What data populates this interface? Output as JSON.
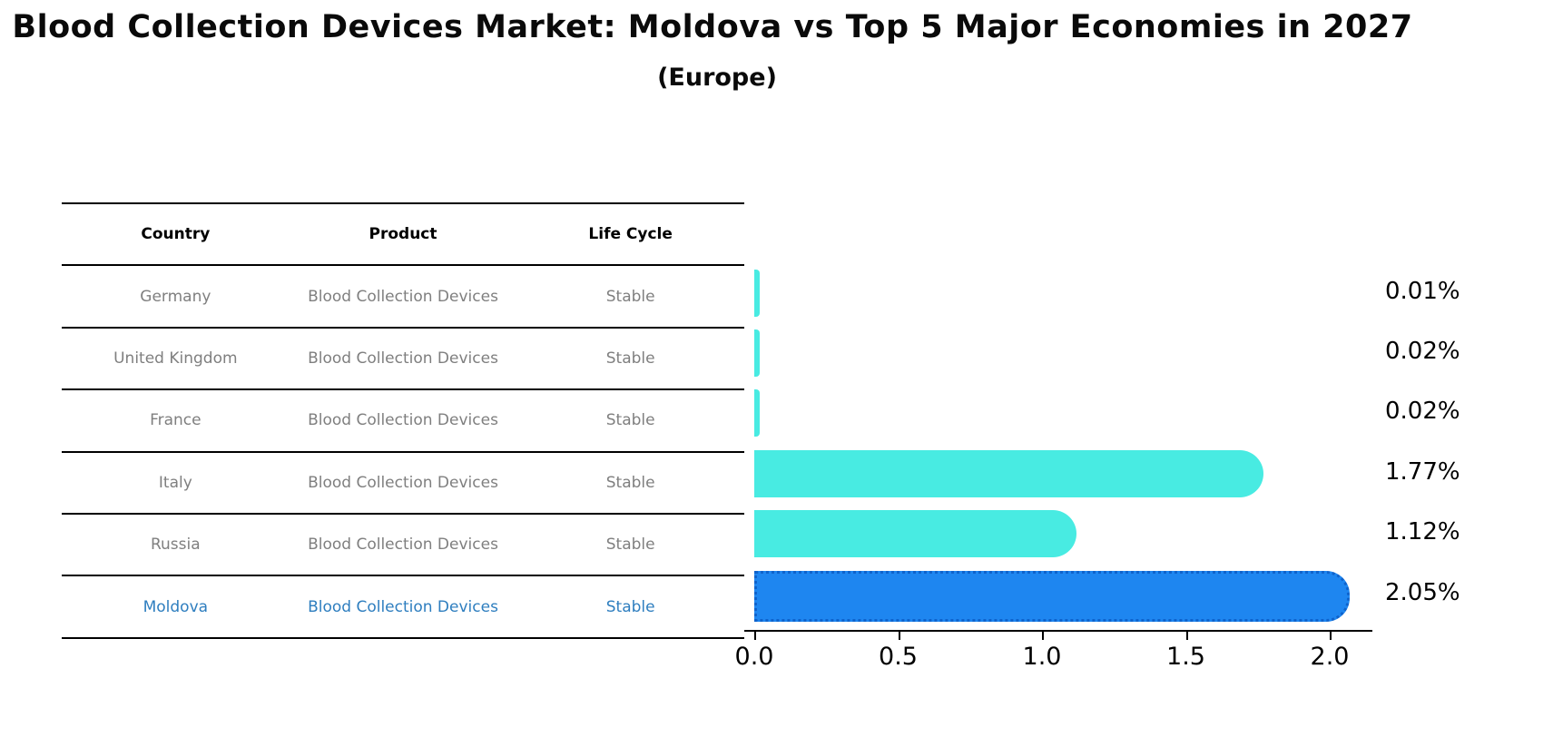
{
  "title": "Blood Collection Devices Market: Moldova vs Top 5 Major Economies in 2027",
  "subtitle": "(Europe)",
  "table": {
    "headers": [
      "Country",
      "Product",
      "Life Cycle"
    ],
    "rows": [
      {
        "country": "Germany",
        "product": "Blood Collection Devices",
        "life_cycle": "Stable",
        "highlighted": false
      },
      {
        "country": "United Kingdom",
        "product": "Blood Collection Devices",
        "life_cycle": "Stable",
        "highlighted": false
      },
      {
        "country": "France",
        "product": "Blood Collection Devices",
        "life_cycle": "Stable",
        "highlighted": false
      },
      {
        "country": "Italy",
        "product": "Blood Collection Devices",
        "life_cycle": "Stable",
        "highlighted": false
      },
      {
        "country": "Russia",
        "product": "Blood Collection Devices",
        "life_cycle": "Stable",
        "highlighted": false
      },
      {
        "country": "Moldova",
        "product": "Blood Collection Devices",
        "life_cycle": "Stable",
        "highlighted": true
      }
    ]
  },
  "chart_data": {
    "type": "bar",
    "orientation": "horizontal",
    "title": "Blood Collection Devices Market: Moldova vs Top 5 Major Economies in 2027 (Europe)",
    "categories": [
      "Germany",
      "United Kingdom",
      "France",
      "Italy",
      "Russia",
      "Moldova"
    ],
    "values": [
      0.01,
      0.02,
      0.02,
      1.77,
      1.12,
      2.05
    ],
    "value_labels": [
      "0.01%",
      "0.02%",
      "0.02%",
      "1.77%",
      "1.12%",
      "2.05%"
    ],
    "highlight_index": 5,
    "x_ticks": [
      0.0,
      0.5,
      1.0,
      1.5,
      2.0
    ],
    "x_tick_labels": [
      "0.0",
      "0.5",
      "1.0",
      "1.5",
      "2.0"
    ],
    "xlim": [
      0.0,
      2.15
    ],
    "grid": false,
    "legend": false,
    "colors": {
      "bar_default": "#48ebe2",
      "bar_highlight": "#1e86f0",
      "highlight_text": "#2e7ebf",
      "table_text": "#7f7f7f",
      "axis": "#000000"
    }
  }
}
